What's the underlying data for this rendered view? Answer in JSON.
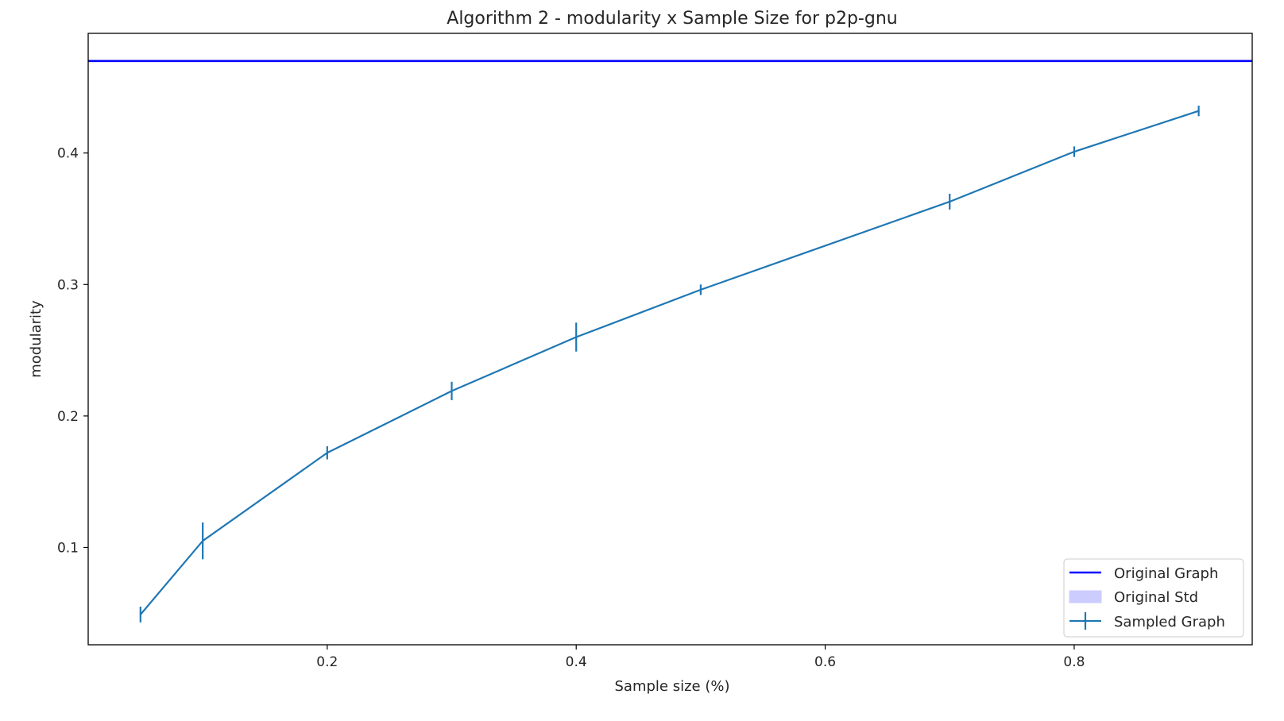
{
  "chart_data": {
    "type": "line",
    "title": "Algorithm 2 - modularity x Sample Size for p2p-gnu",
    "xlabel": "Sample size (%)",
    "ylabel": "modularity",
    "xlim": [
      0.008,
      0.943
    ],
    "ylim": [
      0.026,
      0.491
    ],
    "xticks": [
      0.2,
      0.4,
      0.6,
      0.8
    ],
    "xtick_labels": [
      "0.2",
      "0.4",
      "0.6",
      "0.8"
    ],
    "yticks": [
      0.1,
      0.2,
      0.3,
      0.4
    ],
    "ytick_labels": [
      "0.1",
      "0.2",
      "0.3",
      "0.4"
    ],
    "grid": false,
    "legend_position": "bottom-right",
    "series": [
      {
        "name": "Original Graph",
        "kind": "hline",
        "y": 0.47,
        "color": "#0000ff"
      },
      {
        "name": "Original Std",
        "kind": "band",
        "color": "#ccccff"
      },
      {
        "name": "Sampled Graph",
        "kind": "errorbar",
        "color": "#1f77b4",
        "x": [
          0.05,
          0.1,
          0.2,
          0.3,
          0.4,
          0.5,
          0.7,
          0.8,
          0.9
        ],
        "y": [
          0.049,
          0.105,
          0.172,
          0.219,
          0.26,
          0.296,
          0.363,
          0.401,
          0.432
        ],
        "yerr": [
          0.006,
          0.014,
          0.005,
          0.007,
          0.011,
          0.004,
          0.006,
          0.004,
          0.004
        ]
      }
    ]
  }
}
